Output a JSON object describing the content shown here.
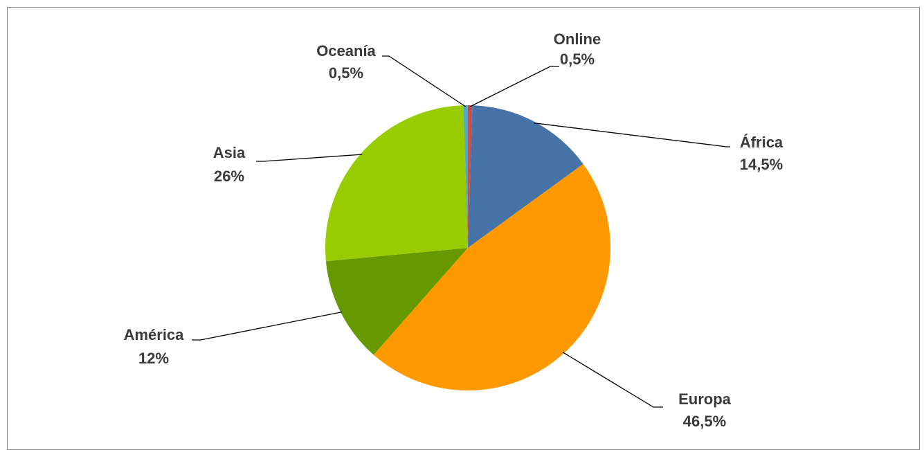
{
  "chart_data": {
    "type": "pie",
    "title": "",
    "legend": "none",
    "start_angle_deg": 90,
    "direction": "clockwise",
    "slices": [
      {
        "name": "Online",
        "value": 0.5,
        "value_label": "0,5%",
        "color": "#c0504d"
      },
      {
        "name": "África",
        "value": 14.5,
        "value_label": "14,5%",
        "color": "#4572a7"
      },
      {
        "name": "Europa",
        "value": 46.5,
        "value_label": "46,5%",
        "color": "#ff9900"
      },
      {
        "name": "América",
        "value": 12,
        "value_label": "12%",
        "color": "#669900"
      },
      {
        "name": "Asia",
        "value": 26,
        "value_label": "26%",
        "color": "#99cc00"
      },
      {
        "name": "Oceanía",
        "value": 0.5,
        "value_label": "0,5%",
        "color": "#4bacc6"
      }
    ]
  }
}
